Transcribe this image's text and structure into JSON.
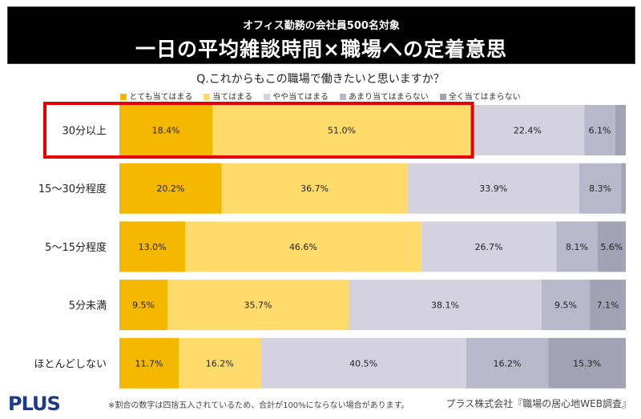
{
  "header": {
    "subtitle": "オフィス勤務の会社員500名対象",
    "title": "一日の平均雑談時間×職場への定着意思"
  },
  "chart_data": {
    "type": "bar",
    "orientation": "horizontal-stacked-100",
    "title": "Q.これからもこの職場で働きたいと思いますか？",
    "categories": [
      "30分以上",
      "15〜30分程度",
      "5〜15分程度",
      "5分未満",
      "ほとんどしない"
    ],
    "series": [
      {
        "name": "とても当てはまる",
        "color": "#F5B800",
        "values": [
          18.4,
          20.2,
          13.0,
          9.5,
          11.7
        ]
      },
      {
        "name": "当てはまる",
        "color": "#FFDB6B",
        "values": [
          51.0,
          36.7,
          46.6,
          35.7,
          16.2
        ]
      },
      {
        "name": "やや当てはまる",
        "color": "#D3D2DE",
        "values": [
          22.4,
          33.9,
          26.7,
          38.1,
          40.5
        ]
      },
      {
        "name": "あまり当てはまらない",
        "color": "#B9B8CA",
        "values": [
          6.1,
          8.3,
          8.1,
          9.5,
          16.2
        ]
      },
      {
        "name": "全く当てはまらない",
        "color": "#A3A2B4",
        "values": [
          2.1,
          0.9,
          5.6,
          7.1,
          15.3
        ]
      }
    ],
    "labels_hidden": [
      [
        false,
        false,
        false,
        false,
        true
      ],
      [
        false,
        false,
        false,
        false,
        true
      ],
      [
        false,
        false,
        false,
        false,
        false
      ],
      [
        false,
        false,
        false,
        false,
        false
      ],
      [
        false,
        false,
        false,
        false,
        false
      ]
    ],
    "highlight": {
      "category": "30分以上",
      "color": "#E60000"
    },
    "legend": "top",
    "xlim": [
      0,
      100
    ]
  },
  "footer": {
    "logo": "PLUS",
    "note": "※割合の数字は四捨五入されているため、合計が100%にならない場合があります。",
    "source": "プラス株式会社『職場の居心地WEB調査』"
  }
}
